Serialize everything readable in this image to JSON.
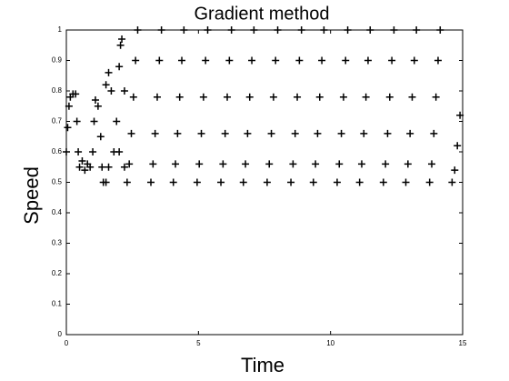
{
  "chart_data": {
    "type": "scatter",
    "title": "Gradient method",
    "x_label": "Time",
    "y_label": "Speed",
    "color": "#000000",
    "marker": "+",
    "xlim": [
      0,
      15
    ],
    "ylim": [
      0,
      1
    ],
    "xticks": [
      0,
      5,
      10,
      15
    ],
    "yticks": [
      0,
      0.1,
      0.2,
      0.3,
      0.4,
      0.5,
      0.6,
      0.7,
      0.8,
      0.9,
      1
    ],
    "x": [
      0,
      0.05,
      0.1,
      0.15,
      0.25,
      0.35,
      0.4,
      0.45,
      0.5,
      0.6,
      0.7,
      0.8,
      0.9,
      1.0,
      1.05,
      1.1,
      1.2,
      1.3,
      1.35,
      1.4,
      1.5,
      1.6,
      1.5,
      1.6,
      1.7,
      1.8,
      1.9,
      2.0,
      2.05,
      2.1,
      2.2,
      2.0,
      2.2,
      2.3,
      2.38,
      2.46,
      2.54,
      2.62,
      2.7,
      3.2,
      3.28,
      3.36,
      3.44,
      3.52,
      3.6,
      4.05,
      4.13,
      4.21,
      4.29,
      4.37,
      4.45,
      4.95,
      5.03,
      5.11,
      5.19,
      5.27,
      5.35,
      5.85,
      5.93,
      6.01,
      6.09,
      6.17,
      6.25,
      6.7,
      6.78,
      6.86,
      6.94,
      7.02,
      7.1,
      7.6,
      7.68,
      7.76,
      7.84,
      7.92,
      8.0,
      8.5,
      8.58,
      8.66,
      8.74,
      8.82,
      8.9,
      9.35,
      9.43,
      9.51,
      9.59,
      9.67,
      9.75,
      10.25,
      10.33,
      10.41,
      10.49,
      10.57,
      10.65,
      11.1,
      11.18,
      11.26,
      11.34,
      11.42,
      11.5,
      12.0,
      12.08,
      12.16,
      12.24,
      12.32,
      12.4,
      12.85,
      12.93,
      13.01,
      13.09,
      13.17,
      13.25,
      13.75,
      13.83,
      13.91,
      13.99,
      14.07,
      14.15,
      14.6,
      14.7,
      14.8,
      14.9
    ],
    "values": [
      0.6,
      0.68,
      0.75,
      0.78,
      0.79,
      0.79,
      0.7,
      0.6,
      0.55,
      0.57,
      0.54,
      0.56,
      0.55,
      0.6,
      0.7,
      0.77,
      0.75,
      0.65,
      0.55,
      0.5,
      0.5,
      0.55,
      0.82,
      0.86,
      0.8,
      0.6,
      0.7,
      0.88,
      0.95,
      0.97,
      0.8,
      0.6,
      0.55,
      0.5,
      0.56,
      0.66,
      0.78,
      0.9,
      1.0,
      0.5,
      0.56,
      0.66,
      0.78,
      0.9,
      1.0,
      0.5,
      0.56,
      0.66,
      0.78,
      0.9,
      1.0,
      0.5,
      0.56,
      0.66,
      0.78,
      0.9,
      1.0,
      0.5,
      0.56,
      0.66,
      0.78,
      0.9,
      1.0,
      0.5,
      0.56,
      0.66,
      0.78,
      0.9,
      1.0,
      0.5,
      0.56,
      0.66,
      0.78,
      0.9,
      1.0,
      0.5,
      0.56,
      0.66,
      0.78,
      0.9,
      1.0,
      0.5,
      0.56,
      0.66,
      0.78,
      0.9,
      1.0,
      0.5,
      0.56,
      0.66,
      0.78,
      0.9,
      1.0,
      0.5,
      0.56,
      0.66,
      0.78,
      0.9,
      1.0,
      0.5,
      0.56,
      0.66,
      0.78,
      0.9,
      1.0,
      0.5,
      0.56,
      0.66,
      0.78,
      0.9,
      1.0,
      0.5,
      0.56,
      0.66,
      0.78,
      0.9,
      1.0,
      0.5,
      0.54,
      0.62,
      0.72
    ]
  }
}
